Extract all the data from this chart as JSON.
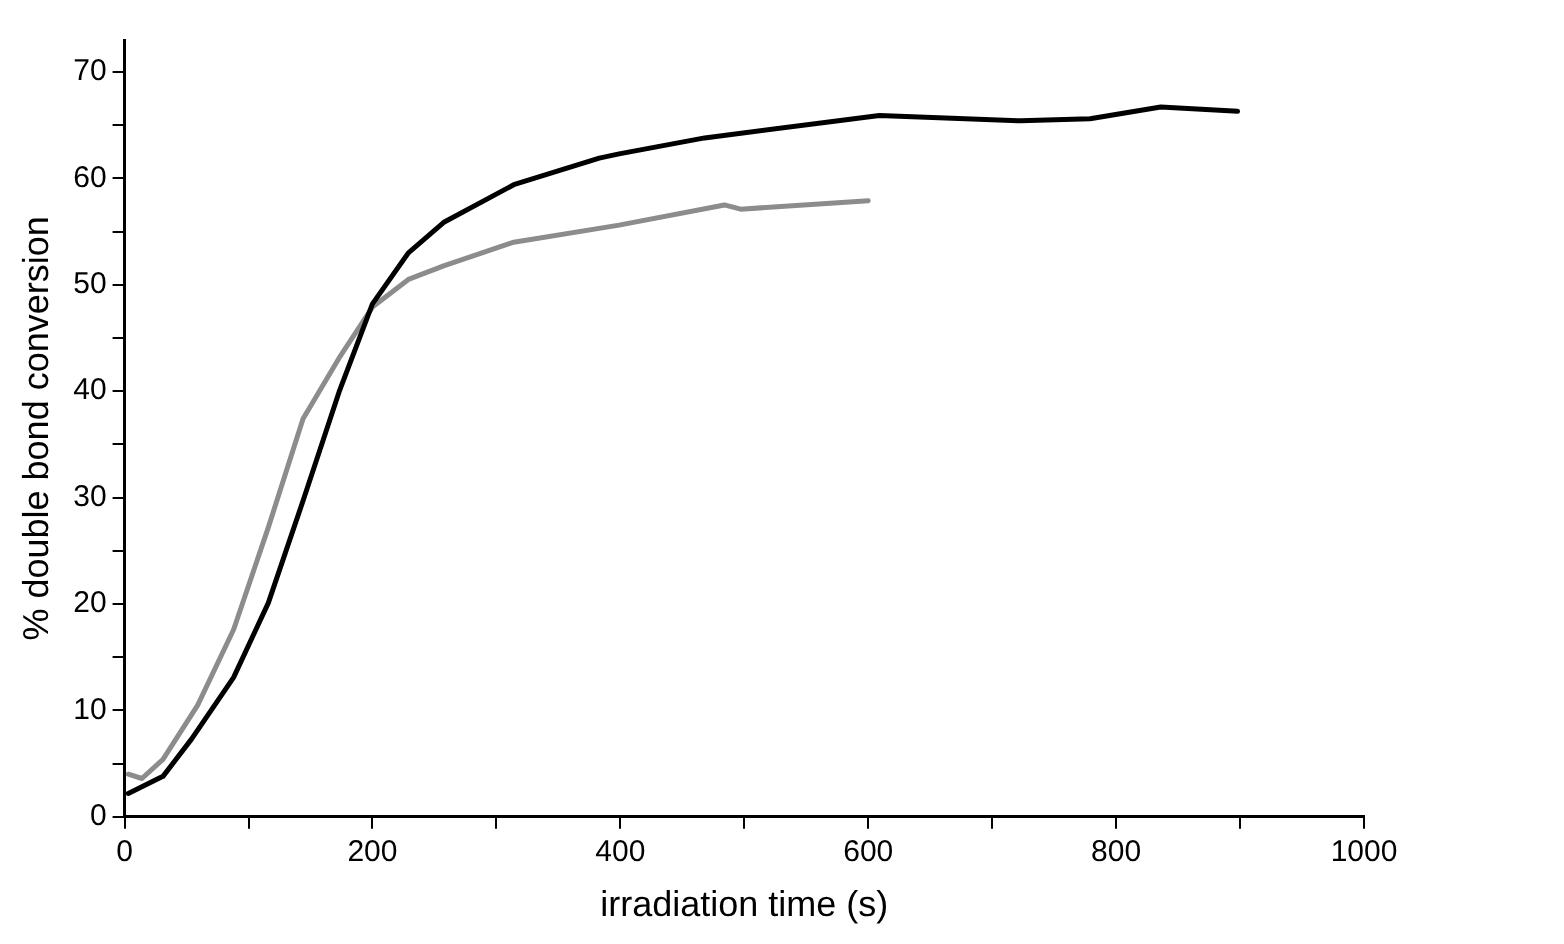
{
  "chart_data": {
    "type": "line",
    "xlabel": "irradiation time (s)",
    "ylabel": "% double bond conversion",
    "xlim": [
      0,
      1000
    ],
    "xticks": [
      0,
      {
        "value": 100,
        "label": null
      },
      200,
      {
        "value": 300,
        "label": null
      },
      400,
      {
        "value": 500,
        "label": null
      },
      600,
      {
        "value": 700,
        "label": null
      },
      800,
      {
        "value": 900,
        "label": null
      },
      1000
    ],
    "ylim": [
      0,
      73
    ],
    "yticks": [
      0,
      {
        "value": 5,
        "label": null
      },
      10,
      {
        "value": 15,
        "label": null
      },
      20,
      {
        "value": 25,
        "label": null
      },
      30,
      {
        "value": 35,
        "label": null
      },
      40,
      {
        "value": 45,
        "label": null
      },
      50,
      {
        "value": 55,
        "label": null
      },
      60,
      {
        "value": 65,
        "label": null
      },
      70
    ],
    "grid": false,
    "legend": false,
    "marker": "none",
    "line_style": "solid",
    "series": [
      {
        "color": "#000000",
        "x": [
          3,
          31,
          54,
          88,
          116,
          144,
          173,
          200,
          229,
          258,
          314,
          383,
          399,
          468,
          609,
          723,
          779,
          836,
          898
        ],
        "values": [
          2.2,
          3.8,
          7.3,
          13.1,
          20.1,
          29.7,
          39.9,
          48.2,
          53,
          55.9,
          59.4,
          61.9,
          62.3,
          63.8,
          65.9,
          65.4,
          65.6,
          66.7,
          66.3
        ]
      },
      {
        "color": "#8c8c8c",
        "x": [
          3,
          14,
          31,
          59,
          88,
          116,
          144,
          173,
          200,
          229,
          258,
          314,
          399,
          484,
          497,
          600
        ],
        "values": [
          4,
          3.6,
          5.4,
          10.5,
          17.6,
          27.2,
          37.4,
          43.1,
          47.9,
          50.5,
          51.8,
          54,
          55.6,
          57.5,
          57.1,
          57.9
        ]
      }
    ]
  }
}
